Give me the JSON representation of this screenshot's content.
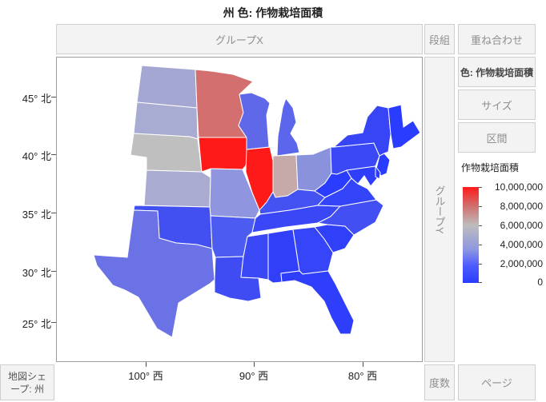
{
  "title": "州 色: 作物栽培面積",
  "zones": {
    "group_x": "グループX",
    "group_y": "グループY",
    "wrap": "段組",
    "overlay": "重ね合わせ",
    "color": "色: 作物栽培面積",
    "size": "サイズ",
    "interval": "区間",
    "freq": "度数",
    "page": "ページ",
    "map_shape": "地図シェープ: 州"
  },
  "axes": {
    "y_ticks": [
      "45° 北",
      "40° 北",
      "35° 北",
      "30° 北",
      "25° 北"
    ],
    "x_ticks": [
      "100° 西",
      "90° 西",
      "80° 西"
    ]
  },
  "legend": {
    "title": "作物栽培面積",
    "labels": [
      "10,000,000",
      "8,000,000",
      "6,000,000",
      "4,000,000",
      "2,000,000",
      "0"
    ],
    "colors": {
      "high": "#ff1a1a",
      "mid": "#bdbdbd",
      "low": "#2a3cff"
    }
  },
  "map_states": [
    {
      "name": "North Dakota",
      "color": "#a4a7d2"
    },
    {
      "name": "South Dakota",
      "color": "#a9acd2"
    },
    {
      "name": "Nebraska",
      "color": "#bfbfbf"
    },
    {
      "name": "Kansas",
      "color": "#a9acd0"
    },
    {
      "name": "Minnesota",
      "color": "#d46f6f"
    },
    {
      "name": "Iowa",
      "color": "#ff1a1a"
    },
    {
      "name": "Illinois",
      "color": "#ff1a1a"
    },
    {
      "name": "Missouri",
      "color": "#8f95de"
    },
    {
      "name": "Oklahoma",
      "color": "#4250f2"
    },
    {
      "name": "Texas",
      "color": "#6a72e6"
    },
    {
      "name": "Arkansas",
      "color": "#4c5bf0"
    },
    {
      "name": "Louisiana",
      "color": "#3f4cf4"
    },
    {
      "name": "Wisconsin",
      "color": "#6068ea"
    },
    {
      "name": "Michigan",
      "color": "#5b66ec"
    },
    {
      "name": "Indiana",
      "color": "#c6aaaa"
    },
    {
      "name": "Ohio",
      "color": "#8a92dc"
    },
    {
      "name": "Kentucky",
      "color": "#4552f2"
    },
    {
      "name": "Tennessee",
      "color": "#3a47f6"
    },
    {
      "name": "Mississippi",
      "color": "#3a48f6"
    },
    {
      "name": "Alabama",
      "color": "#3140f8"
    },
    {
      "name": "Georgia",
      "color": "#3545f7"
    },
    {
      "name": "Florida",
      "color": "#2e3efa"
    },
    {
      "name": "South Carolina",
      "color": "#3040f8"
    },
    {
      "name": "North Carolina",
      "color": "#4250f3"
    },
    {
      "name": "Virginia",
      "color": "#3444f8"
    },
    {
      "name": "West Virginia",
      "color": "#2a3cff"
    },
    {
      "name": "Pennsylvania",
      "color": "#3a48f6"
    },
    {
      "name": "New York",
      "color": "#3745f7"
    },
    {
      "name": "Maryland",
      "color": "#2e3efa"
    },
    {
      "name": "New Jersey",
      "color": "#2a3cff"
    },
    {
      "name": "Delaware",
      "color": "#2a3cff"
    },
    {
      "name": "New England",
      "color": "#2a3cff"
    }
  ]
}
